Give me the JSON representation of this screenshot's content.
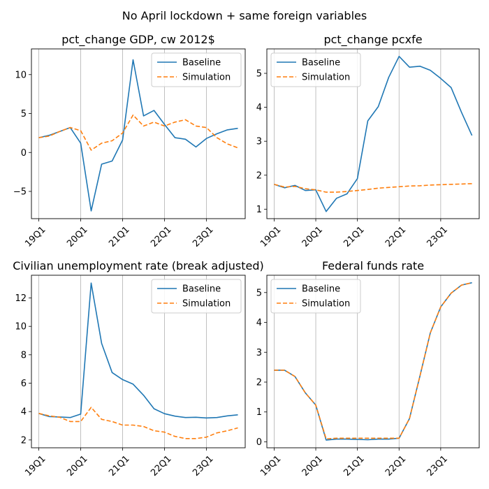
{
  "figure": {
    "suptitle": "No April lockdown + same foreign variables"
  },
  "colors": {
    "baseline": "#1f77b4",
    "simulation": "#ff7f0e",
    "grid": "#b0b0b0"
  },
  "chart_data": [
    {
      "type": "line",
      "title": "pct_change GDP, cw 2012$",
      "x": [
        0,
        1,
        2,
        3,
        4,
        5,
        6,
        7,
        8,
        9,
        10,
        11,
        12,
        13,
        14,
        15,
        16,
        17,
        18,
        19
      ],
      "xticks": [
        {
          "pos": 0,
          "label": "19Q1"
        },
        {
          "pos": 4,
          "label": "20Q1"
        },
        {
          "pos": 8,
          "label": "21Q1"
        },
        {
          "pos": 12,
          "label": "22Q1"
        },
        {
          "pos": 16,
          "label": "23Q1"
        }
      ],
      "grid": "x",
      "legend": "upper right",
      "ylim": [
        -8.5,
        13.3
      ],
      "yticks": [
        -5,
        0,
        5,
        10
      ],
      "yticklabels": [
        "−5",
        "0",
        "5",
        "10"
      ],
      "series": [
        {
          "name": "Baseline",
          "style": "solid",
          "values": [
            1.9,
            2.2,
            2.7,
            3.2,
            1.2,
            -7.5,
            -1.5,
            -1.1,
            1.6,
            11.9,
            4.7,
            5.4,
            3.6,
            1.9,
            1.7,
            0.7,
            1.8,
            2.4,
            2.9,
            3.1
          ]
        },
        {
          "name": "Simulation",
          "style": "dashed",
          "values": [
            1.9,
            2.1,
            2.7,
            3.2,
            2.8,
            0.3,
            1.2,
            1.5,
            2.5,
            4.8,
            3.4,
            3.9,
            3.4,
            3.9,
            4.2,
            3.4,
            3.2,
            1.9,
            1.1,
            0.6
          ]
        }
      ]
    },
    {
      "type": "line",
      "title": "pct_change pcxfe",
      "x": [
        0,
        1,
        2,
        3,
        4,
        5,
        6,
        7,
        8,
        9,
        10,
        11,
        12,
        13,
        14,
        15,
        16,
        17,
        18,
        19
      ],
      "xticks": [
        {
          "pos": 0,
          "label": "19Q1"
        },
        {
          "pos": 4,
          "label": "20Q1"
        },
        {
          "pos": 8,
          "label": "21Q1"
        },
        {
          "pos": 12,
          "label": "22Q1"
        },
        {
          "pos": 16,
          "label": "23Q1"
        }
      ],
      "grid": "x",
      "legend": "upper left",
      "ylim": [
        0.72,
        5.72
      ],
      "yticks": [
        1,
        2,
        3,
        4,
        5
      ],
      "yticklabels": [
        "1",
        "2",
        "3",
        "4",
        "5"
      ],
      "series": [
        {
          "name": "Baseline",
          "style": "solid",
          "values": [
            1.73,
            1.63,
            1.7,
            1.55,
            1.57,
            0.93,
            1.32,
            1.45,
            1.9,
            3.6,
            4.02,
            4.88,
            5.5,
            5.18,
            5.21,
            5.09,
            4.85,
            4.58,
            3.85,
            3.17
          ]
        },
        {
          "name": "Simulation",
          "style": "dashed",
          "values": [
            1.73,
            1.65,
            1.67,
            1.6,
            1.57,
            1.5,
            1.5,
            1.52,
            1.55,
            1.58,
            1.62,
            1.64,
            1.66,
            1.68,
            1.69,
            1.71,
            1.72,
            1.73,
            1.74,
            1.75
          ]
        }
      ]
    },
    {
      "type": "line",
      "title": "Civilian unemployment rate (break adjusted)",
      "x": [
        0,
        1,
        2,
        3,
        4,
        5,
        6,
        7,
        8,
        9,
        10,
        11,
        12,
        13,
        14,
        15,
        16,
        17,
        18,
        19
      ],
      "xticks": [
        {
          "pos": 0,
          "label": "19Q1"
        },
        {
          "pos": 4,
          "label": "20Q1"
        },
        {
          "pos": 8,
          "label": "21Q1"
        },
        {
          "pos": 12,
          "label": "22Q1"
        },
        {
          "pos": 16,
          "label": "23Q1"
        }
      ],
      "grid": "x",
      "legend": "upper right",
      "ylim": [
        1.45,
        13.6
      ],
      "yticks": [
        2,
        4,
        6,
        8,
        10,
        12
      ],
      "yticklabels": [
        "2",
        "4",
        "6",
        "8",
        "10",
        "12"
      ],
      "series": [
        {
          "name": "Baseline",
          "style": "solid",
          "values": [
            3.87,
            3.65,
            3.62,
            3.58,
            3.82,
            13.05,
            8.8,
            6.75,
            6.25,
            5.93,
            5.15,
            4.2,
            3.85,
            3.68,
            3.58,
            3.6,
            3.55,
            3.58,
            3.7,
            3.77
          ]
        },
        {
          "name": "Simulation",
          "style": "dashed",
          "values": [
            3.87,
            3.7,
            3.6,
            3.3,
            3.3,
            4.3,
            3.45,
            3.3,
            3.05,
            3.05,
            2.95,
            2.65,
            2.55,
            2.25,
            2.1,
            2.1,
            2.2,
            2.5,
            2.65,
            2.85
          ]
        }
      ]
    },
    {
      "type": "line",
      "title": "Federal funds rate",
      "x": [
        0,
        1,
        2,
        3,
        4,
        5,
        6,
        7,
        8,
        9,
        10,
        11,
        12,
        13,
        14,
        15,
        16,
        17,
        18,
        19
      ],
      "xticks": [
        {
          "pos": 0,
          "label": "19Q1"
        },
        {
          "pos": 4,
          "label": "20Q1"
        },
        {
          "pos": 8,
          "label": "21Q1"
        },
        {
          "pos": 12,
          "label": "22Q1"
        },
        {
          "pos": 16,
          "label": "23Q1"
        }
      ],
      "grid": "x",
      "legend": "upper left",
      "ylim": [
        -0.2,
        5.58
      ],
      "yticks": [
        0,
        1,
        2,
        3,
        4,
        5
      ],
      "yticklabels": [
        "0",
        "1",
        "2",
        "3",
        "4",
        "5"
      ],
      "series": [
        {
          "name": "Baseline",
          "style": "solid",
          "values": [
            2.4,
            2.4,
            2.19,
            1.64,
            1.23,
            0.06,
            0.09,
            0.09,
            0.08,
            0.07,
            0.09,
            0.09,
            0.12,
            0.78,
            2.2,
            3.65,
            4.52,
            4.98,
            5.25,
            5.33
          ]
        },
        {
          "name": "Simulation",
          "style": "dashed",
          "values": [
            2.4,
            2.4,
            2.19,
            1.64,
            1.23,
            0.1,
            0.12,
            0.12,
            0.12,
            0.12,
            0.12,
            0.12,
            0.12,
            0.78,
            2.2,
            3.65,
            4.52,
            4.98,
            5.25,
            5.33
          ]
        }
      ]
    }
  ]
}
